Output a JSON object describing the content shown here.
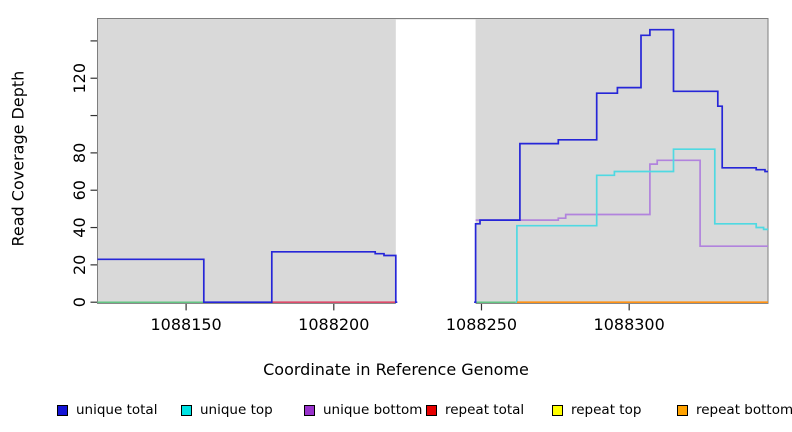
{
  "figure": {
    "x_axis_title": "Coordinate in Reference Genome",
    "y_axis_title": "Read Coverage Depth"
  },
  "colors": {
    "plot_background": "#d9d9d9",
    "plot_border": "#7e7e7e",
    "tick_color": "#333333",
    "no_data_band": "#ffffff",
    "overlap_green": "#63c583"
  },
  "legend": {
    "items": [
      {
        "label": "unique total",
        "swatch_color": "#1414d6"
      },
      {
        "label": "unique top",
        "swatch_color": "#00e3e3"
      },
      {
        "label": "unique bottom",
        "swatch_color": "#9933cc"
      },
      {
        "label": "repeat total",
        "swatch_color": "#e60000"
      },
      {
        "label": "repeat top",
        "swatch_color": "#ffff00"
      },
      {
        "label": "repeat bottom",
        "swatch_color": "#ffa200"
      }
    ]
  },
  "chart_data": {
    "type": "line",
    "subtype": "step-coverage",
    "title": "",
    "xlabel": "Coordinate in Reference Genome",
    "ylabel": "Read Coverage Depth",
    "grid": false,
    "legend_position": "bottom",
    "x_axis": {
      "range": [
        1088120,
        1088347
      ],
      "ticks_labeled": [
        1088150,
        1088200,
        1088250,
        1088300
      ]
    },
    "y_axis": {
      "range": [
        0,
        152
      ],
      "ticks_labeled": [
        0,
        20,
        40,
        60,
        80,
        120
      ],
      "ticks_unlabeled": [
        100,
        140
      ]
    },
    "no_data_band": {
      "x_start": 1088221,
      "x_end": 1088248
    },
    "series": [
      {
        "name": "repeat total",
        "color": "#dd4a6a",
        "plateaus": [
          [
            1088179,
            1088221,
            0
          ]
        ]
      },
      {
        "name": "unique bottom",
        "color": "#b183dd",
        "plateaus": [
          [
            1088248,
            1088276,
            44
          ],
          [
            1088276,
            1088278.5,
            45
          ],
          [
            1088278.5,
            1088307,
            47
          ],
          [
            1088307,
            1088309.5,
            74
          ],
          [
            1088309.5,
            1088324,
            76
          ],
          [
            1088324,
            1088347,
            30
          ]
        ]
      },
      {
        "name": "unique top",
        "color": "#4fd9e2",
        "plateaus": [
          [
            1088261.5,
            1088262,
            0
          ],
          [
            1088262,
            1088289,
            41
          ],
          [
            1088289,
            1088295,
            68
          ],
          [
            1088295,
            1088315,
            70
          ],
          [
            1088315,
            1088329,
            82
          ],
          [
            1088329,
            1088343,
            42
          ],
          [
            1088343,
            1088345.5,
            40
          ],
          [
            1088345.5,
            1088347,
            39
          ]
        ]
      },
      {
        "name": "repeat bottom",
        "color": "#ff9214",
        "plateaus": [
          [
            1088262,
            1088347,
            0
          ]
        ]
      },
      {
        "name": "repeat top",
        "color": "#ffff00",
        "plateaus": []
      },
      {
        "name": "unique total",
        "color": "#2626d8",
        "plateaus": [
          [
            1088120,
            1088156,
            23
          ],
          [
            1088156,
            1088179,
            0
          ],
          [
            1088179,
            1088214,
            27
          ],
          [
            1088214,
            1088217,
            26
          ],
          [
            1088217,
            1088221,
            25
          ],
          [
            1088221,
            1088221.5,
            0
          ],
          [
            1088247.5,
            1088248,
            0
          ],
          [
            1088248,
            1088249.5,
            42
          ],
          [
            1088249.5,
            1088263,
            44
          ],
          [
            1088263,
            1088276,
            85
          ],
          [
            1088276,
            1088289,
            87
          ],
          [
            1088289,
            1088296,
            112
          ],
          [
            1088296,
            1088304,
            115
          ],
          [
            1088304,
            1088307,
            143
          ],
          [
            1088307,
            1088315,
            146
          ],
          [
            1088315,
            1088330,
            113
          ],
          [
            1088330,
            1088331.5,
            105
          ],
          [
            1088331.5,
            1088343,
            72
          ],
          [
            1088343,
            1088346,
            71
          ],
          [
            1088346,
            1088347,
            70
          ]
        ]
      }
    ],
    "overlap_segments": {
      "description": "unique top + repeat top coincide at depth 0 (rendered green)",
      "segments": [
        [
          1088120,
          1088156,
          0
        ],
        [
          1088248,
          1088262,
          0
        ]
      ]
    }
  }
}
